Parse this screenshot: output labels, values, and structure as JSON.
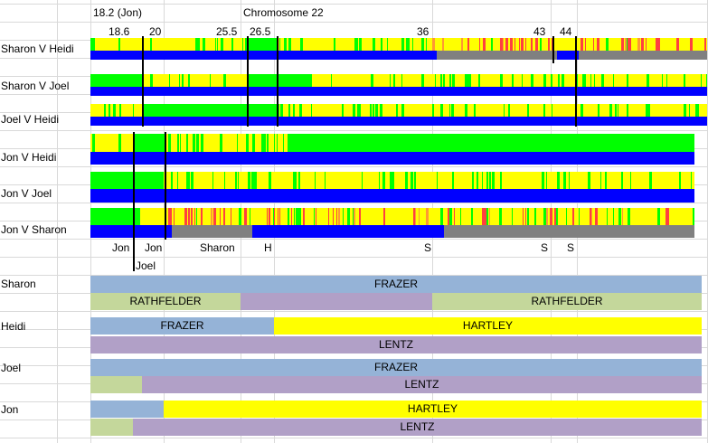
{
  "header": {
    "title": "Chromosome 22",
    "jon_marker": "18.2 (Jon)",
    "ticks": [
      "18.6",
      "20",
      "25.5",
      "26.5",
      "36",
      "43",
      "44"
    ]
  },
  "comparisons": [
    "Sharon V Heidi",
    "Sharon V Joel",
    "Joel V Heidi",
    "Jon V Heidi",
    "Jon V Joel",
    "Jon V Sharon"
  ],
  "markers": [
    "Jon",
    "Jon",
    "Sharon",
    "H",
    "S",
    "S",
    "S",
    "Joel"
  ],
  "colors": {
    "match_full": "#00ff00",
    "match_half": "#ffff00",
    "mismatch": "#ff4040",
    "blue": "#0000ff",
    "grey": "#808080",
    "frazer": "#95b3d7",
    "hartley": "#ffff00",
    "lentz": "#b1a0c7",
    "rathfelder": "#c4d79b"
  },
  "people": [
    {
      "name": "Sharon",
      "rows": [
        [
          "FRAZER"
        ],
        [
          "RATHFELDER",
          "",
          "RATHFELDER"
        ]
      ]
    },
    {
      "name": "Heidi",
      "rows": [
        [
          "FRAZER",
          "HARTLEY"
        ],
        [
          "LENTZ"
        ]
      ]
    },
    {
      "name": "Joel",
      "rows": [
        [
          "FRAZER"
        ],
        [
          "",
          "LENTZ"
        ]
      ]
    },
    {
      "name": "Jon",
      "rows": [
        [
          "",
          "HARTLEY"
        ],
        [
          "",
          "LENTZ"
        ]
      ]
    }
  ]
}
